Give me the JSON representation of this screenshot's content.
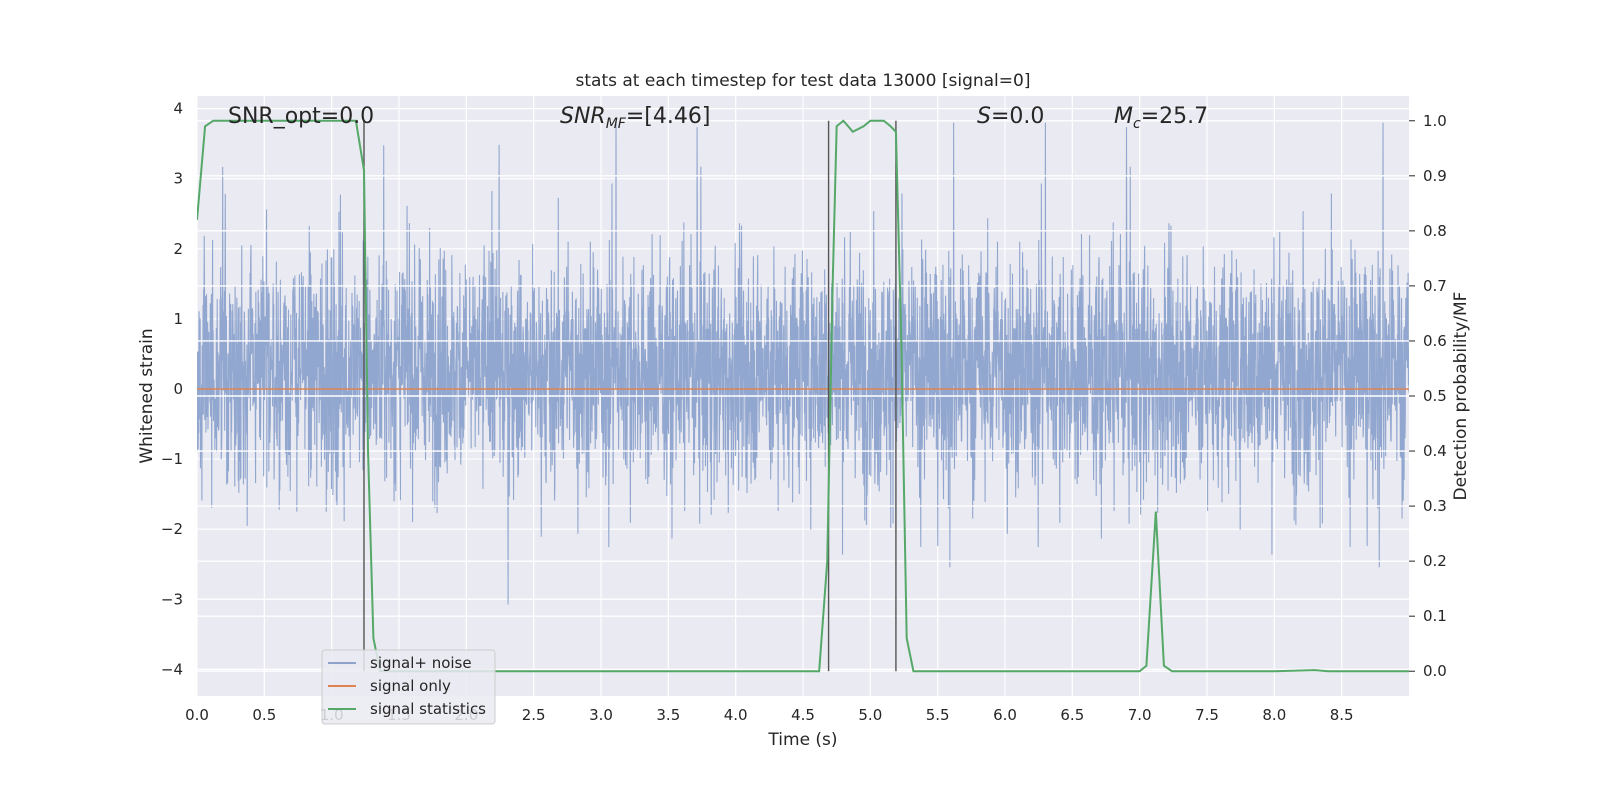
{
  "chart_data": {
    "type": "line",
    "title": "stats at each timestep for test data 13000 [signal=0]",
    "xlabel": "Time (s)",
    "ylabel_left": "Whitened strain",
    "ylabel_right": "Detection probability/MF",
    "xlim": [
      0.0,
      9.0
    ],
    "ylim_left": [
      -4.38,
      4.18
    ],
    "ylim_right": [
      -0.045,
      1.045
    ],
    "xticks": [
      "0.0",
      "0.5",
      "1.0",
      "1.5",
      "2.0",
      "2.5",
      "3.0",
      "3.5",
      "4.0",
      "4.5",
      "5.0",
      "5.5",
      "6.0",
      "6.5",
      "7.0",
      "7.5",
      "8.0",
      "8.5"
    ],
    "yticks_left": [
      "4",
      "3",
      "2",
      "1",
      "0",
      "−1",
      "−2",
      "−3",
      "−4"
    ],
    "yticks_right": [
      "1.0",
      "0.9",
      "0.8",
      "0.7",
      "0.6",
      "0.5",
      "0.4",
      "0.3",
      "0.2",
      "0.1",
      "0.0"
    ],
    "grid": true,
    "legend_position": "lower-left",
    "annotations": {
      "snr_opt": "SNR_opt=0.0",
      "snr_mf_base": "SNR",
      "snr_mf_sub": "MF",
      "snr_mf_value": "=[4.46]",
      "s_base": "S",
      "s_value": "=0.0",
      "mc_base": "M",
      "mc_sub": "c",
      "mc_value": "=25.7"
    },
    "vertical_lines_x": [
      1.24,
      4.69,
      5.19
    ],
    "series": [
      {
        "name": "signal+ noise",
        "color": "#8da3cc",
        "axis": "left",
        "description_band": {
          "x": [
            0.0,
            9.0
          ],
          "typical_range": [
            -1.9,
            2.5
          ]
        }
      },
      {
        "name": "signal only",
        "color": "#dd8452",
        "axis": "left",
        "x": [
          0.0,
          9.0
        ],
        "y": [
          0.0,
          0.0
        ]
      },
      {
        "name": "signal statistics",
        "color": "#55a868",
        "axis": "right",
        "x": [
          0.0,
          0.06,
          0.12,
          0.2,
          0.5,
          0.8,
          1.0,
          1.18,
          1.24,
          1.27,
          1.31,
          1.36,
          2.0,
          3.0,
          4.0,
          4.5,
          4.62,
          4.68,
          4.72,
          4.75,
          4.8,
          4.87,
          4.95,
          5.0,
          5.1,
          5.15,
          5.19,
          5.23,
          5.27,
          5.32,
          5.5,
          6.0,
          6.5,
          7.0,
          7.05,
          7.12,
          7.18,
          7.24,
          7.5,
          8.0,
          8.3,
          8.4,
          8.6,
          9.0
        ],
        "y": [
          0.82,
          0.99,
          1.0,
          1.0,
          1.0,
          1.0,
          1.0,
          1.0,
          0.91,
          0.4,
          0.06,
          0.0,
          0.0,
          0.0,
          0.0,
          0.0,
          0.0,
          0.2,
          0.7,
          0.99,
          1.0,
          0.98,
          0.99,
          1.0,
          1.0,
          0.99,
          0.98,
          0.6,
          0.06,
          0.0,
          0.0,
          0.0,
          0.0,
          0.0,
          0.01,
          0.29,
          0.01,
          0.0,
          0.0,
          0.0,
          0.002,
          0.0,
          0.0,
          0.0
        ]
      }
    ]
  }
}
